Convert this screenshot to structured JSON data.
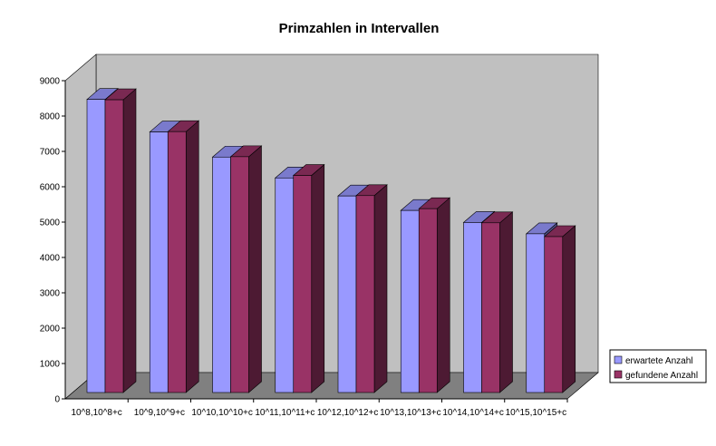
{
  "chart_data": {
    "type": "bar",
    "title": "Primzahlen in Intervallen",
    "categories": [
      "10^8,10^8+c",
      "10^9,10^9+c",
      "10^10,10^10+c",
      "10^11,10^11+c",
      "10^12,10^12+c",
      "10^13,10^13+c",
      "10^14,10^14+c",
      "10^15,10^15+c"
    ],
    "series": [
      {
        "name": "erwartete Anzahl",
        "values": [
          8290,
          7370,
          6660,
          6070,
          5560,
          5150,
          4810,
          4490
        ],
        "color": "#9999ff"
      },
      {
        "name": "gefundene Anzahl",
        "values": [
          8280,
          7380,
          6670,
          6140,
          5570,
          5200,
          4800,
          4410
        ],
        "color": "#993366"
      }
    ],
    "ylim": [
      0,
      9000
    ],
    "yticks": [
      "0",
      "1000",
      "2000",
      "3000",
      "4000",
      "5000",
      "6000",
      "7000",
      "8000",
      "9000"
    ],
    "grid": false,
    "legend_position": "right",
    "wall_color": "#c0c0c0",
    "floor_color": "#808080"
  }
}
